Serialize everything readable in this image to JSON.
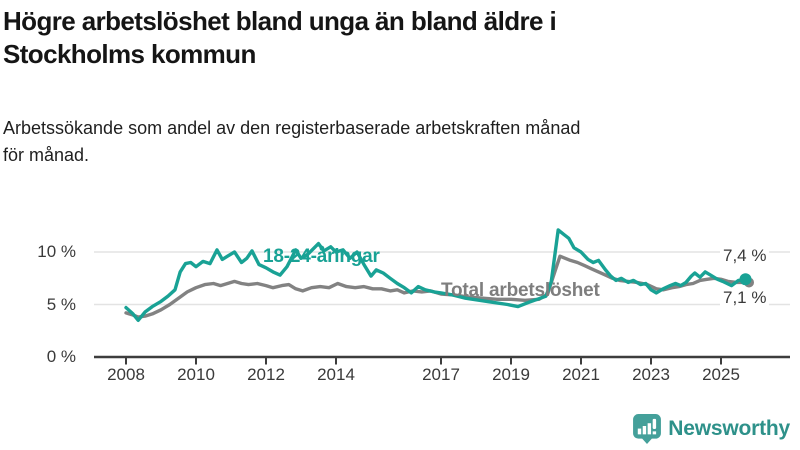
{
  "header": {
    "title_lines": [
      "Högre arbetslöshet bland unga än bland äldre i",
      "Stockholms kommun"
    ],
    "subtitle_lines": [
      "Arbetssökande som andel av den registerbaserade arbetskraften månad",
      "för månad."
    ]
  },
  "chart_data": {
    "type": "line",
    "title": "Högre arbetslöshet bland unga än bland äldre i Stockholms kommun",
    "subtitle": "Arbetssökande som andel av den registerbaserade arbetskraften månad för månad.",
    "x_unit": "year (monthly data, decimal years)",
    "xlim": [
      2007.9,
      2025.75
    ],
    "ylim": [
      0,
      12.5
    ],
    "grid": "horizontal",
    "x_ticks": [
      2008,
      2010,
      2012,
      2014,
      2017,
      2019,
      2021,
      2023,
      2025
    ],
    "y_ticks": [
      {
        "value": 0,
        "label": "0 %"
      },
      {
        "value": 5,
        "label": "5 %"
      },
      {
        "value": 10,
        "label": "10 %"
      }
    ],
    "axis_color": "#3d3d3d",
    "gridline_color": "#e3e3e3",
    "series": [
      {
        "name": "18-24-åringar",
        "color": "#19a295",
        "points": [
          [
            2008.0,
            4.7
          ],
          [
            2008.2,
            4.1
          ],
          [
            2008.35,
            3.5
          ],
          [
            2008.55,
            4.3
          ],
          [
            2008.75,
            4.8
          ],
          [
            2009.0,
            5.3
          ],
          [
            2009.2,
            5.8
          ],
          [
            2009.4,
            6.4
          ],
          [
            2009.55,
            8.1
          ],
          [
            2009.7,
            8.9
          ],
          [
            2009.85,
            9.0
          ],
          [
            2010.0,
            8.6
          ],
          [
            2010.2,
            9.1
          ],
          [
            2010.4,
            8.9
          ],
          [
            2010.6,
            10.2
          ],
          [
            2010.75,
            9.3
          ],
          [
            2010.9,
            9.6
          ],
          [
            2011.1,
            10.0
          ],
          [
            2011.3,
            9.0
          ],
          [
            2011.45,
            9.4
          ],
          [
            2011.6,
            10.1
          ],
          [
            2011.8,
            8.8
          ],
          [
            2012.0,
            8.5
          ],
          [
            2012.2,
            8.1
          ],
          [
            2012.4,
            7.8
          ],
          [
            2012.6,
            8.6
          ],
          [
            2012.85,
            10.2
          ],
          [
            2013.0,
            9.4
          ],
          [
            2013.2,
            9.8
          ],
          [
            2013.5,
            10.8
          ],
          [
            2013.65,
            10.1
          ],
          [
            2013.85,
            10.5
          ],
          [
            2014.0,
            10.0
          ],
          [
            2014.2,
            10.2
          ],
          [
            2014.4,
            9.4
          ],
          [
            2014.6,
            10.0
          ],
          [
            2014.8,
            8.8
          ],
          [
            2015.0,
            7.7
          ],
          [
            2015.15,
            8.3
          ],
          [
            2015.35,
            8.0
          ],
          [
            2015.55,
            7.5
          ],
          [
            2015.75,
            7.0
          ],
          [
            2015.95,
            6.6
          ],
          [
            2016.15,
            6.1
          ],
          [
            2016.35,
            6.7
          ],
          [
            2016.55,
            6.4
          ],
          [
            2016.8,
            6.2
          ],
          [
            2017.0,
            6.1
          ],
          [
            2017.35,
            5.9
          ],
          [
            2017.7,
            5.6
          ],
          [
            2018.1,
            5.4
          ],
          [
            2018.5,
            5.2
          ],
          [
            2018.9,
            5.0
          ],
          [
            2019.2,
            4.8
          ],
          [
            2019.5,
            5.2
          ],
          [
            2019.75,
            5.5
          ],
          [
            2020.0,
            5.8
          ],
          [
            2020.15,
            7.2
          ],
          [
            2020.35,
            12.1
          ],
          [
            2020.5,
            11.7
          ],
          [
            2020.65,
            11.3
          ],
          [
            2020.8,
            10.4
          ],
          [
            2021.0,
            10.0
          ],
          [
            2021.2,
            9.3
          ],
          [
            2021.35,
            9.0
          ],
          [
            2021.5,
            9.2
          ],
          [
            2021.7,
            8.3
          ],
          [
            2021.85,
            7.7
          ],
          [
            2022.0,
            7.3
          ],
          [
            2022.15,
            7.5
          ],
          [
            2022.35,
            7.1
          ],
          [
            2022.5,
            7.3
          ],
          [
            2022.7,
            6.9
          ],
          [
            2022.85,
            7.0
          ],
          [
            2023.0,
            6.4
          ],
          [
            2023.15,
            6.1
          ],
          [
            2023.35,
            6.5
          ],
          [
            2023.55,
            6.8
          ],
          [
            2023.7,
            7.0
          ],
          [
            2023.85,
            6.8
          ],
          [
            2024.0,
            7.1
          ],
          [
            2024.15,
            7.7
          ],
          [
            2024.25,
            8.0
          ],
          [
            2024.4,
            7.6
          ],
          [
            2024.55,
            8.1
          ],
          [
            2024.7,
            7.8
          ],
          [
            2024.9,
            7.4
          ],
          [
            2025.05,
            7.2
          ],
          [
            2025.3,
            6.8
          ],
          [
            2025.5,
            7.3
          ],
          [
            2025.7,
            7.4
          ]
        ]
      },
      {
        "name": "Total arbetslöshet",
        "color": "#828282",
        "points": [
          [
            2008.0,
            4.2
          ],
          [
            2008.2,
            4.0
          ],
          [
            2008.35,
            3.8
          ],
          [
            2008.55,
            3.9
          ],
          [
            2008.75,
            4.1
          ],
          [
            2009.0,
            4.5
          ],
          [
            2009.25,
            5.0
          ],
          [
            2009.5,
            5.6
          ],
          [
            2009.75,
            6.2
          ],
          [
            2010.0,
            6.6
          ],
          [
            2010.25,
            6.9
          ],
          [
            2010.5,
            7.0
          ],
          [
            2010.7,
            6.8
          ],
          [
            2010.9,
            7.0
          ],
          [
            2011.1,
            7.2
          ],
          [
            2011.3,
            7.0
          ],
          [
            2011.5,
            6.9
          ],
          [
            2011.75,
            7.0
          ],
          [
            2012.0,
            6.8
          ],
          [
            2012.2,
            6.6
          ],
          [
            2012.45,
            6.8
          ],
          [
            2012.65,
            6.9
          ],
          [
            2012.85,
            6.5
          ],
          [
            2013.05,
            6.3
          ],
          [
            2013.3,
            6.6
          ],
          [
            2013.55,
            6.7
          ],
          [
            2013.8,
            6.6
          ],
          [
            2014.05,
            7.0
          ],
          [
            2014.3,
            6.7
          ],
          [
            2014.55,
            6.6
          ],
          [
            2014.8,
            6.7
          ],
          [
            2015.05,
            6.5
          ],
          [
            2015.3,
            6.5
          ],
          [
            2015.55,
            6.3
          ],
          [
            2015.75,
            6.4
          ],
          [
            2015.95,
            6.1
          ],
          [
            2016.2,
            6.3
          ],
          [
            2016.45,
            6.2
          ],
          [
            2016.7,
            6.3
          ],
          [
            2017.0,
            6.0
          ],
          [
            2017.4,
            5.9
          ],
          [
            2017.8,
            5.7
          ],
          [
            2018.2,
            5.6
          ],
          [
            2018.6,
            5.5
          ],
          [
            2019.0,
            5.5
          ],
          [
            2019.4,
            5.4
          ],
          [
            2019.8,
            5.5
          ],
          [
            2020.05,
            6.0
          ],
          [
            2020.2,
            7.6
          ],
          [
            2020.4,
            9.6
          ],
          [
            2020.55,
            9.4
          ],
          [
            2020.7,
            9.2
          ],
          [
            2020.9,
            9.0
          ],
          [
            2021.1,
            8.7
          ],
          [
            2021.3,
            8.4
          ],
          [
            2021.5,
            8.1
          ],
          [
            2021.7,
            7.8
          ],
          [
            2021.9,
            7.5
          ],
          [
            2022.1,
            7.3
          ],
          [
            2022.35,
            7.2
          ],
          [
            2022.6,
            7.1
          ],
          [
            2022.9,
            6.9
          ],
          [
            2023.15,
            6.5
          ],
          [
            2023.35,
            6.4
          ],
          [
            2023.6,
            6.6
          ],
          [
            2023.8,
            6.7
          ],
          [
            2024.0,
            6.9
          ],
          [
            2024.2,
            7.0
          ],
          [
            2024.4,
            7.3
          ],
          [
            2024.6,
            7.4
          ],
          [
            2024.8,
            7.5
          ],
          [
            2025.0,
            7.4
          ],
          [
            2025.2,
            7.2
          ],
          [
            2025.45,
            7.1
          ],
          [
            2025.7,
            7.1
          ]
        ]
      }
    ],
    "end_labels": [
      {
        "text": "7,4 %",
        "series": "18-24-åringar",
        "value": 7.4
      },
      {
        "text": "7,1 %",
        "series": "Total arbetslöshet",
        "value": 7.1
      }
    ],
    "legend_position": "inline-labels"
  },
  "branding": {
    "name": "Newsworthy",
    "text_color": "#2e918a",
    "icon_color": "#44a09a",
    "icon": "newsworthy-speech-bubble-bar-chart-icon"
  }
}
